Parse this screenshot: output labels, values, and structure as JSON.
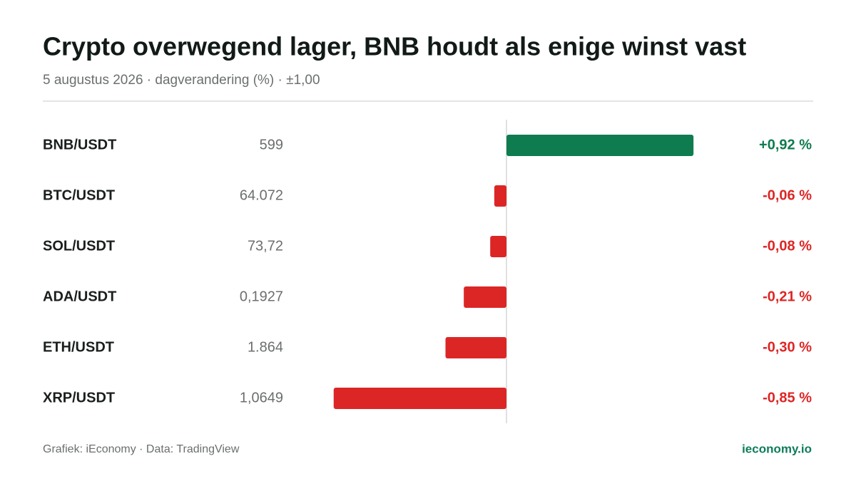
{
  "chart_data": {
    "type": "bar",
    "orientation": "horizontal",
    "title": "Crypto overwegend lager, BNB houdt als enige winst vast",
    "subtitle": "5 augustus 2026 · dagverandering (%) · ±1,00",
    "categories": [
      "BNB/USDT",
      "BTC/USDT",
      "SOL/USDT",
      "ADA/USDT",
      "ETH/USDT",
      "XRP/USDT"
    ],
    "prices": [
      "599",
      "64.072",
      "73,72",
      "0,1927",
      "1.864",
      "1,0649"
    ],
    "values": [
      0.92,
      -0.06,
      -0.08,
      -0.21,
      -0.3,
      -0.85
    ],
    "value_labels": [
      "+0,92 %",
      "-0,06 %",
      "-0,08 %",
      "-0,21 %",
      "-0,30 %",
      "-0,85 %"
    ],
    "xlim": [
      -1,
      1
    ],
    "color_positive": "#0e7c4f",
    "color_negative": "#dc2626",
    "source": "Grafiek: iEconomy · Data: TradingView",
    "brand": "ieconomy.io"
  }
}
